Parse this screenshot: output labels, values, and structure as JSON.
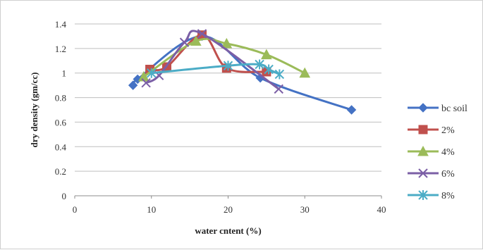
{
  "chart_data": {
    "type": "line",
    "title": "",
    "xlabel": "water cntent (%)",
    "ylabel": "dry density (gm/cc)",
    "xlim": [
      0,
      40
    ],
    "ylim": [
      0,
      1.4
    ],
    "x_ticks": [
      "0",
      "10",
      "20",
      "30",
      "40"
    ],
    "y_ticks": [
      "0",
      "0.2",
      "0.4",
      "0.6",
      "0.8",
      "1",
      "1.2",
      "1.4"
    ],
    "grid": "horizontal",
    "legend_position": "right",
    "series": [
      {
        "name": "bc soil",
        "color": "#4472C4",
        "marker": "diamond",
        "points": [
          [
            7.6,
            0.9
          ],
          [
            8.2,
            0.95
          ],
          [
            16.6,
            1.3
          ],
          [
            24.2,
            0.96
          ],
          [
            36.1,
            0.7
          ]
        ]
      },
      {
        "name": "2%",
        "color": "#C0504D",
        "marker": "square",
        "points": [
          [
            9.8,
            1.03
          ],
          [
            12.0,
            1.05
          ],
          [
            16.6,
            1.31
          ],
          [
            19.8,
            1.04
          ],
          [
            25.0,
            1.01
          ]
        ]
      },
      {
        "name": "4%",
        "color": "#9BBB59",
        "marker": "triangle",
        "points": [
          [
            9.0,
            0.97
          ],
          [
            15.8,
            1.26
          ],
          [
            19.8,
            1.24
          ],
          [
            25.0,
            1.15
          ],
          [
            30.0,
            1.0
          ]
        ]
      },
      {
        "name": "6%",
        "color": "#7B5FA6",
        "marker": "x",
        "points": [
          [
            9.3,
            0.92
          ],
          [
            11.0,
            0.98
          ],
          [
            14.3,
            1.25
          ],
          [
            16.6,
            1.32
          ],
          [
            26.6,
            0.87
          ]
        ]
      },
      {
        "name": "8%",
        "color": "#4BACC6",
        "marker": "asterisk",
        "points": [
          [
            10.0,
            1.0
          ],
          [
            20.0,
            1.06
          ],
          [
            24.1,
            1.07
          ],
          [
            25.3,
            1.03
          ],
          [
            26.7,
            0.99
          ]
        ]
      }
    ]
  }
}
